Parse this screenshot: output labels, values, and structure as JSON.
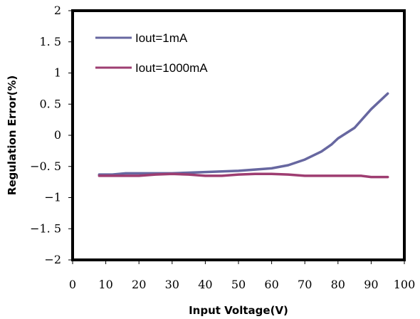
{
  "chart_data": {
    "type": "line",
    "xlabel": "Input Voltage(V)",
    "ylabel": "Regulation Error(%)",
    "xlim": [
      0,
      100
    ],
    "ylim": [
      -2,
      2
    ],
    "x_ticks": [
      0,
      10,
      20,
      30,
      40,
      50,
      60,
      70,
      80,
      90,
      100
    ],
    "y_ticks": [
      -2,
      -1.5,
      -1,
      -0.5,
      0,
      0.5,
      1,
      1.5,
      2
    ],
    "x_tick_labels": [
      "0",
      "10",
      "20",
      "30",
      "40",
      "50",
      "60",
      "70",
      "80",
      "90",
      "100"
    ],
    "y_tick_labels": [
      "−2",
      "−1. 5",
      "−1",
      "−0. 5",
      "0",
      "0. 5",
      "1",
      "1. 5",
      "2"
    ],
    "grid": false,
    "legend_position": "top-left",
    "series": [
      {
        "name": "Iout=1mA",
        "color": "#6767A0",
        "x": [
          8,
          10,
          12,
          16,
          20,
          25,
          30,
          35,
          40,
          45,
          50,
          55,
          60,
          65,
          70,
          75,
          78,
          80,
          85,
          90,
          95
        ],
        "y": [
          -0.63,
          -0.63,
          -0.63,
          -0.61,
          -0.61,
          -0.61,
          -0.61,
          -0.6,
          -0.59,
          -0.58,
          -0.57,
          -0.55,
          -0.53,
          -0.48,
          -0.39,
          -0.26,
          -0.15,
          -0.05,
          0.12,
          0.42,
          0.67
        ]
      },
      {
        "name": "Iout=1000mA",
        "color": "#9E3D71",
        "x": [
          8,
          10,
          15,
          20,
          25,
          30,
          35,
          40,
          45,
          50,
          55,
          60,
          65,
          70,
          75,
          80,
          85,
          87,
          90,
          95
        ],
        "y": [
          -0.65,
          -0.65,
          -0.65,
          -0.65,
          -0.63,
          -0.62,
          -0.63,
          -0.65,
          -0.65,
          -0.63,
          -0.62,
          -0.62,
          -0.63,
          -0.65,
          -0.65,
          -0.65,
          -0.65,
          -0.65,
          -0.67,
          -0.67
        ]
      }
    ]
  }
}
